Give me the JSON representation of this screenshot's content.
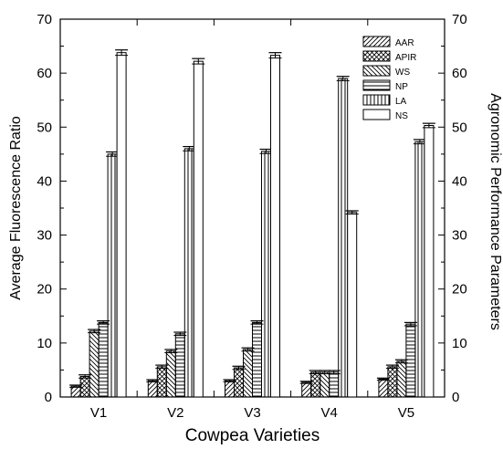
{
  "chart_data": {
    "type": "bar",
    "xlabel": "Cowpea Varieties",
    "ylabel": "Average Fluorescence Ratio",
    "y2label": "Agronomic Performance Parameters",
    "categories": [
      "V1",
      "V2",
      "V3",
      "V4",
      "V5"
    ],
    "ylim": [
      0,
      70
    ],
    "y2lim": [
      0,
      70
    ],
    "yticks": [
      0,
      10,
      20,
      30,
      40,
      50,
      60,
      70
    ],
    "legend_position": "top-right",
    "grid": false,
    "error_bars": true,
    "series": [
      {
        "name": "AAR",
        "pattern": "diagonal-up",
        "values": [
          2.0,
          3.0,
          3.0,
          2.7,
          3.3
        ],
        "errors": [
          0.2,
          0.2,
          0.2,
          0.2,
          0.2
        ]
      },
      {
        "name": "APIR",
        "pattern": "crosshatch",
        "values": [
          3.8,
          5.6,
          5.4,
          4.6,
          5.6
        ],
        "errors": [
          0.3,
          0.3,
          0.3,
          0.3,
          0.3
        ]
      },
      {
        "name": "WS",
        "pattern": "diagonal-down",
        "values": [
          12.2,
          8.5,
          8.8,
          4.6,
          6.6
        ],
        "errors": [
          0.3,
          0.3,
          0.3,
          0.3,
          0.3
        ]
      },
      {
        "name": "NP",
        "pattern": "horizontal",
        "values": [
          13.8,
          11.7,
          13.8,
          4.6,
          13.5
        ],
        "errors": [
          0.3,
          0.3,
          0.3,
          0.3,
          0.3
        ]
      },
      {
        "name": "LA",
        "pattern": "vertical",
        "values": [
          45.0,
          46.0,
          45.5,
          59.0,
          47.3
        ],
        "errors": [
          0.4,
          0.4,
          0.4,
          0.4,
          0.4
        ]
      },
      {
        "name": "NS",
        "pattern": "none",
        "values": [
          63.8,
          62.2,
          63.3,
          34.2,
          50.3
        ],
        "errors": [
          0.5,
          0.5,
          0.5,
          0.3,
          0.4
        ]
      }
    ]
  }
}
